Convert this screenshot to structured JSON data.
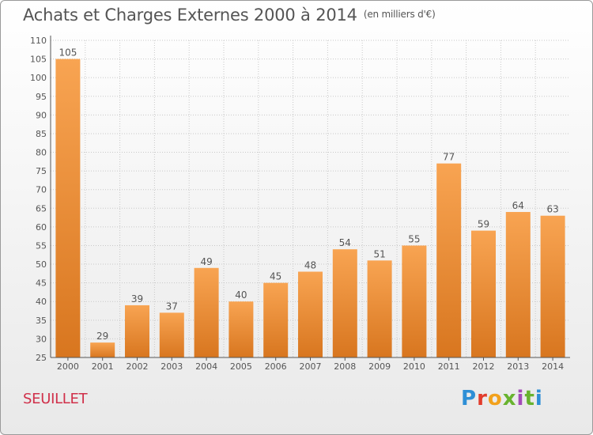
{
  "title": "Achats et Charges Externes 2000 à 2014",
  "subtitle": "(en milliers d'€)",
  "location": "SEUILLET",
  "brand": "Proxiti",
  "colors": {
    "bar_top": "#f8a452",
    "bar_bottom": "#d8761f",
    "grid": "#c8c8c8",
    "axis": "#555555",
    "text": "#555555",
    "location": "#d0304a"
  },
  "chart_data": {
    "type": "bar",
    "title": "Achats et Charges Externes 2000 à 2014",
    "subtitle": "(en milliers d'€)",
    "xlabel": "",
    "ylabel": "",
    "categories": [
      "2000",
      "2001",
      "2002",
      "2003",
      "2004",
      "2005",
      "2006",
      "2007",
      "2008",
      "2009",
      "2010",
      "2011",
      "2012",
      "2013",
      "2014"
    ],
    "values": [
      105,
      29,
      39,
      37,
      49,
      40,
      45,
      48,
      54,
      51,
      55,
      77,
      59,
      64,
      63
    ],
    "ylim": [
      25,
      110
    ],
    "yticks": [
      25,
      30,
      35,
      40,
      45,
      50,
      55,
      60,
      65,
      70,
      75,
      80,
      85,
      90,
      95,
      100,
      105,
      110
    ],
    "grid": true,
    "data_labels": true,
    "legend": "none"
  }
}
